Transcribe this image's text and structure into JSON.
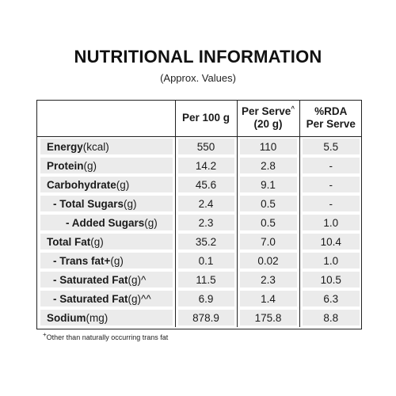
{
  "title": "NUTRITIONAL INFORMATION",
  "subtitle": "(Approx. Values)",
  "columns": {
    "per_100g": "Per 100 g",
    "per_serve_line1": "Per Serve",
    "per_serve_sup": "^",
    "per_serve_line2": "(20 g)",
    "rda_line1": "%RDA",
    "rda_line2": "Per Serve"
  },
  "rows": [
    {
      "label": "Energy",
      "unit": " (kcal)",
      "per_100g": "550",
      "per_serve": "110",
      "rda": "5.5"
    },
    {
      "label": "Protein",
      "unit": " (g)",
      "per_100g": "14.2",
      "per_serve": "2.8",
      "rda": "-"
    },
    {
      "label": "Carbohydrate",
      "unit": " (g)",
      "per_100g": "45.6",
      "per_serve": "9.1",
      "rda": "-"
    },
    {
      "label": "- Total Sugars",
      "unit": " (g)",
      "per_100g": "2.4",
      "per_serve": "0.5",
      "rda": "-"
    },
    {
      "label": "- Added Sugars",
      "unit": " (g)",
      "per_100g": "2.3",
      "per_serve": "0.5",
      "rda": "1.0"
    },
    {
      "label": "Total Fat",
      "unit": " (g)",
      "per_100g": "35.2",
      "per_serve": "7.0",
      "rda": "10.4"
    },
    {
      "label": "- Trans fat+",
      "unit": "(g)",
      "per_100g": "0.1",
      "per_serve": "0.02",
      "rda": "1.0"
    },
    {
      "label": "- Saturated Fat",
      "unit": " (g)^",
      "per_100g": "11.5",
      "per_serve": "2.3",
      "rda": "10.5"
    },
    {
      "label": "- Saturated Fat",
      "unit": " (g)^^",
      "per_100g": "6.9",
      "per_serve": "1.4",
      "rda": "6.3"
    },
    {
      "label": "Sodium",
      "unit": " (mg)",
      "per_100g": "878.9",
      "per_serve": "175.8",
      "rda": "8.8"
    }
  ],
  "footnote_mark": "+",
  "footnote": "Other than naturally occurring trans fat"
}
